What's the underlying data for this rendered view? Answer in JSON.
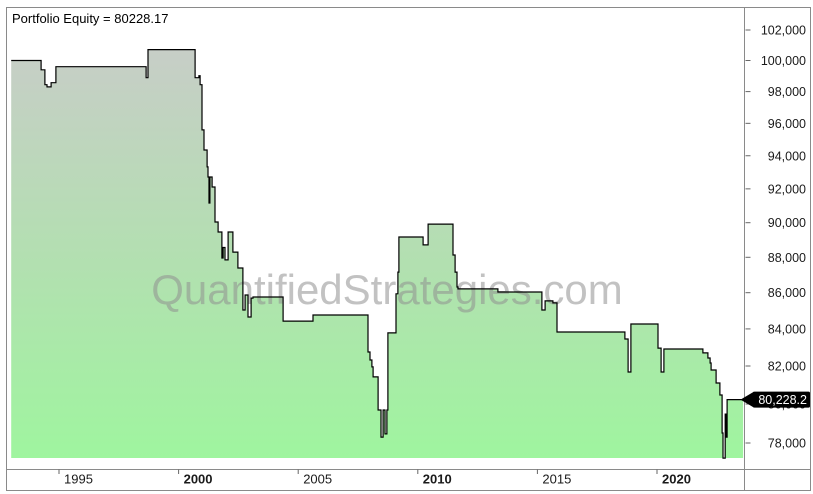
{
  "header": {
    "title": "Portfolio Equity = 80228.17"
  },
  "watermark": {
    "text": "QuantifiedStrategies.com"
  },
  "colors": {
    "fill_top": "#c9ccc9",
    "fill_mid": "#b2e0b0",
    "fill_bottom": "#9ff59f",
    "line": "#000000",
    "frame": "#8a8a8a",
    "tick": "#666666",
    "axis_text": "#1a1a1a",
    "badge_bg": "#000000",
    "badge_text": "#ffffff",
    "watermark_gray": "#8f8f8f"
  },
  "y_axis": {
    "labels": [
      {
        "text": "102,000",
        "value": 102000
      },
      {
        "text": "100,000",
        "value": 100000
      },
      {
        "text": "98,000",
        "value": 98000
      },
      {
        "text": "96,000",
        "value": 96000
      },
      {
        "text": "94,000",
        "value": 94000
      },
      {
        "text": "92,000",
        "value": 92000
      },
      {
        "text": "90,000",
        "value": 90000
      },
      {
        "text": "88,000",
        "value": 88000
      },
      {
        "text": "86,000",
        "value": 86000
      },
      {
        "text": "84,000",
        "value": 84000
      },
      {
        "text": "82,000",
        "value": 82000
      },
      {
        "text": "80,000",
        "value": 80000
      },
      {
        "text": "78,000",
        "value": 78000
      }
    ],
    "badge": {
      "text": "80,228.2",
      "value": 80228.17
    }
  },
  "x_axis": {
    "labels": [
      {
        "text": "1995",
        "year": 1995,
        "bold": false
      },
      {
        "text": "2000",
        "year": 2000,
        "bold": true
      },
      {
        "text": "2005",
        "year": 2005,
        "bold": false
      },
      {
        "text": "2010",
        "year": 2010,
        "bold": true
      },
      {
        "text": "2015",
        "year": 2015,
        "bold": false
      },
      {
        "text": "2020",
        "year": 2020,
        "bold": true
      }
    ]
  },
  "chart_data": {
    "type": "area",
    "title": "Portfolio Equity",
    "current_value": 80228.17,
    "xlabel": "",
    "ylabel": "",
    "x_range": [
      1993.0,
      2023.6
    ],
    "y_range": [
      77240,
      100710
    ],
    "y_scale": "log",
    "baseline_value": 77250,
    "grid": false,
    "legend_position": "none",
    "series": [
      {
        "name": "Portfolio Equity",
        "step": true,
        "points": [
          [
            1993.0,
            100000
          ],
          [
            1994.25,
            99400
          ],
          [
            1994.41,
            98440
          ],
          [
            1994.5,
            98300
          ],
          [
            1994.67,
            98570
          ],
          [
            1994.87,
            99600
          ],
          [
            1998.64,
            98890
          ],
          [
            1998.72,
            100710
          ],
          [
            2000.69,
            98890
          ],
          [
            2000.85,
            99020
          ],
          [
            2000.9,
            98440
          ],
          [
            2000.98,
            95590
          ],
          [
            2001.06,
            94350
          ],
          [
            2001.19,
            93320
          ],
          [
            2001.23,
            92710
          ],
          [
            2001.27,
            91160
          ],
          [
            2001.31,
            92710
          ],
          [
            2001.4,
            92110
          ],
          [
            2001.52,
            90040
          ],
          [
            2001.65,
            89460
          ],
          [
            2001.81,
            87960
          ],
          [
            2001.86,
            88560
          ],
          [
            2001.94,
            87850
          ],
          [
            2002.07,
            89460
          ],
          [
            2002.27,
            88300
          ],
          [
            2002.48,
            87390
          ],
          [
            2002.69,
            85040
          ],
          [
            2002.78,
            85870
          ],
          [
            2002.9,
            84650
          ],
          [
            2003.03,
            85700
          ],
          [
            2003.11,
            85760
          ],
          [
            2004.37,
            84430
          ],
          [
            2005.62,
            84760
          ],
          [
            2007.92,
            82750
          ],
          [
            2008.0,
            82320
          ],
          [
            2008.08,
            81950
          ],
          [
            2008.13,
            81420
          ],
          [
            2008.34,
            79690
          ],
          [
            2008.46,
            78300
          ],
          [
            2008.55,
            79690
          ],
          [
            2008.63,
            78460
          ],
          [
            2008.71,
            79690
          ],
          [
            2008.75,
            83780
          ],
          [
            2009.09,
            85940
          ],
          [
            2009.17,
            87160
          ],
          [
            2009.21,
            89170
          ],
          [
            2010.22,
            88710
          ],
          [
            2010.43,
            89920
          ],
          [
            2011.47,
            88130
          ],
          [
            2011.56,
            87160
          ],
          [
            2011.64,
            86320
          ],
          [
            2011.68,
            86210
          ],
          [
            2013.35,
            86040
          ],
          [
            2015.19,
            85040
          ],
          [
            2015.32,
            85540
          ],
          [
            2015.65,
            85430
          ],
          [
            2015.82,
            83830
          ],
          [
            2018.66,
            83450
          ],
          [
            2018.79,
            81680
          ],
          [
            2018.91,
            84270
          ],
          [
            2020.04,
            82960
          ],
          [
            2020.17,
            81680
          ],
          [
            2020.29,
            82910
          ],
          [
            2021.92,
            82700
          ],
          [
            2022.13,
            82430
          ],
          [
            2022.22,
            82160
          ],
          [
            2022.26,
            81790
          ],
          [
            2022.47,
            81100
          ],
          [
            2022.63,
            80470
          ],
          [
            2022.72,
            78510
          ],
          [
            2022.76,
            77240
          ],
          [
            2022.85,
            79480
          ],
          [
            2022.89,
            78300
          ],
          [
            2022.93,
            80228
          ],
          [
            2023.6,
            80228
          ]
        ]
      }
    ]
  }
}
